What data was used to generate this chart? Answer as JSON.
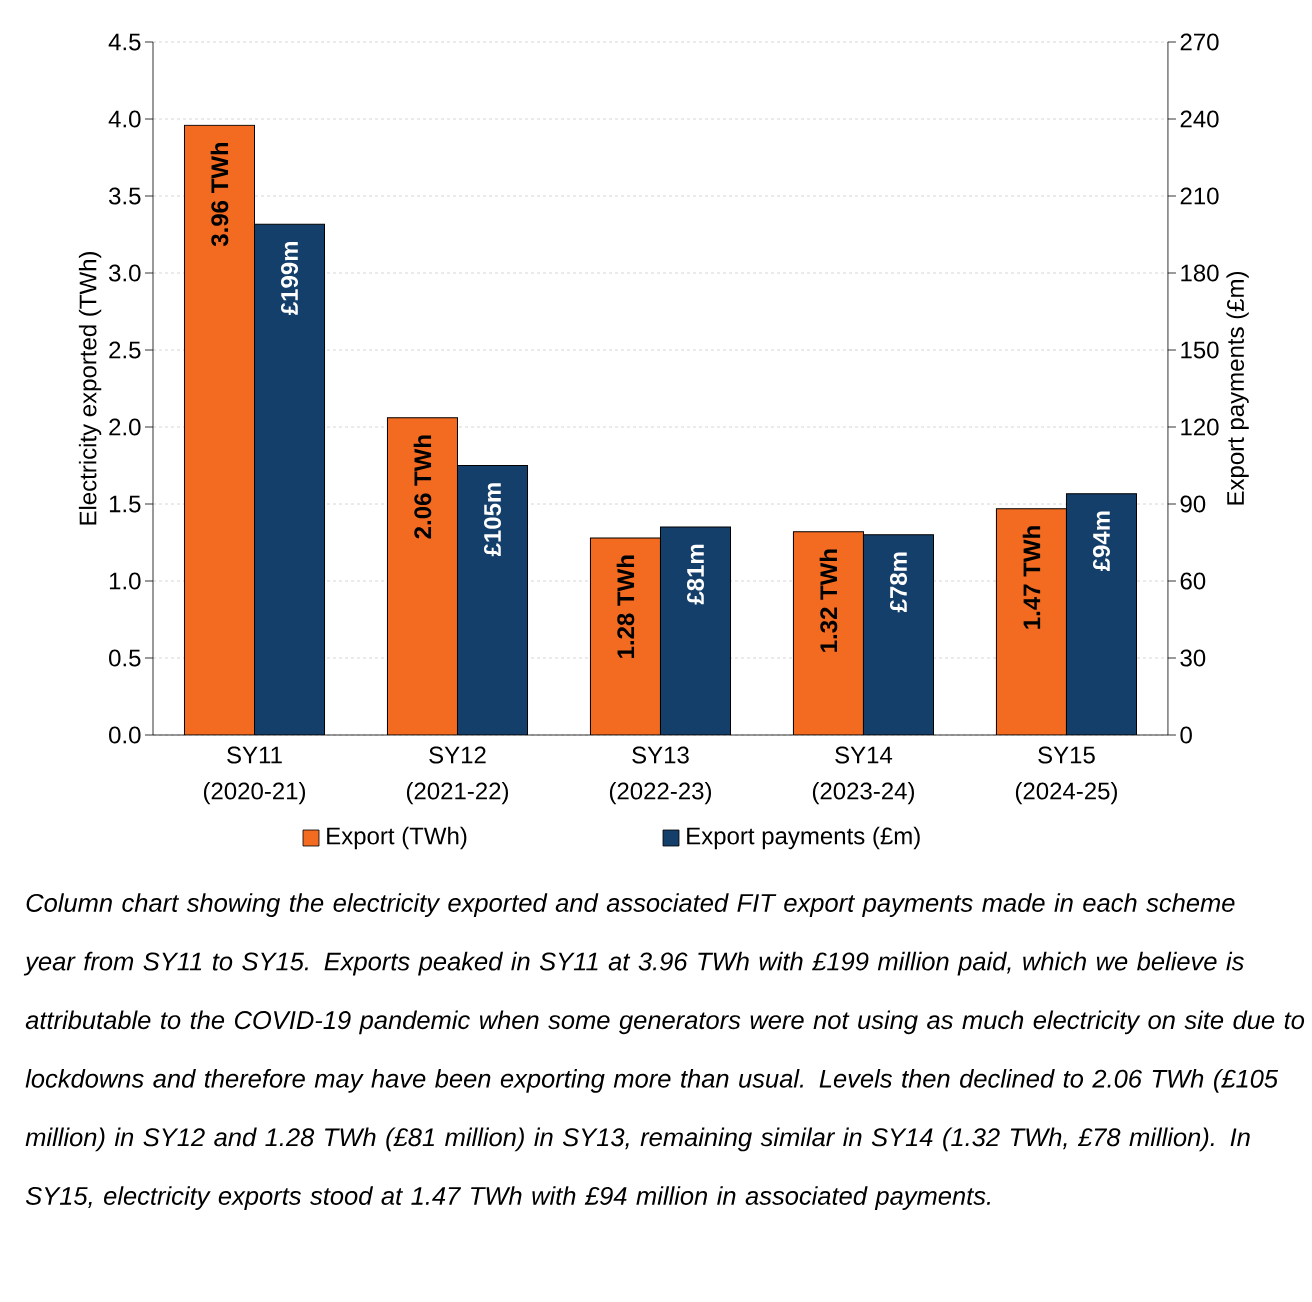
{
  "chart_data": {
    "type": "bar",
    "categories": [
      "SY11 (2020-21)",
      "SY12 (2021-22)",
      "SY13 (2022-23)",
      "SY14 (2023-24)",
      "SY15 (2024-25)"
    ],
    "series": [
      {
        "name": "Export (TWh)",
        "color": "#f26b21",
        "values": [
          3.96,
          2.06,
          1.28,
          1.32,
          1.47
        ],
        "value_labels": [
          "3.96 TWh",
          "2.06 TWh",
          "1.28 TWh",
          "1.32 TWh",
          "1.47 TWh"
        ]
      },
      {
        "name": "Export payments (£m)",
        "color": "#143f6b",
        "axis": "y2",
        "values": [
          199,
          105,
          81,
          78,
          94
        ],
        "value_labels": [
          "£199m",
          "£105m",
          "£81m",
          "£78m",
          "£94m"
        ]
      }
    ],
    "ylabel": "Electricity exported (TWh)",
    "y2label": "Export payments (£m)",
    "ylim": [
      0,
      4.5
    ],
    "yticks": [
      {
        "value": 0,
        "label": "0.0"
      },
      {
        "value": 0.5,
        "label": "0.5"
      },
      {
        "value": 1,
        "label": "1.0"
      },
      {
        "value": 1.5,
        "label": "1.5"
      },
      {
        "value": 2,
        "label": "2.0"
      },
      {
        "value": 2.5,
        "label": "2.5"
      },
      {
        "value": 3,
        "label": "3.0"
      },
      {
        "value": 3.5,
        "label": "3.5"
      },
      {
        "value": 4,
        "label": "4.0"
      },
      {
        "value": 4.5,
        "label": "4.5"
      }
    ],
    "y2lim": [
      0,
      270
    ],
    "y2ticks": [
      0,
      30,
      60,
      90,
      120,
      150,
      180,
      210,
      240,
      270
    ],
    "grid": "y",
    "legend": "bottom",
    "annotations": [
      "*Column chart showing the electricity exported and associated FIT export payments made in each scheme year from SY11 to SY15. Exports peaked in SY11 at 3.96 TWh with £199 million paid, which we believe is attributable to the COVID-19 pandemic when some generators were not using as much electricity on site due to lockdowns and therefore may have been exporting more than usual. Levels then declined to 2.06 TWh (£105 million) in SY12 and 1.28 TWh (£81 million) in SY13, remaining similar in SY14 (1.32 TWh, £78 million). In SY15, electricity exports stood at 1.47 TWh with £94 million in associated payments.*"
    ]
  }
}
